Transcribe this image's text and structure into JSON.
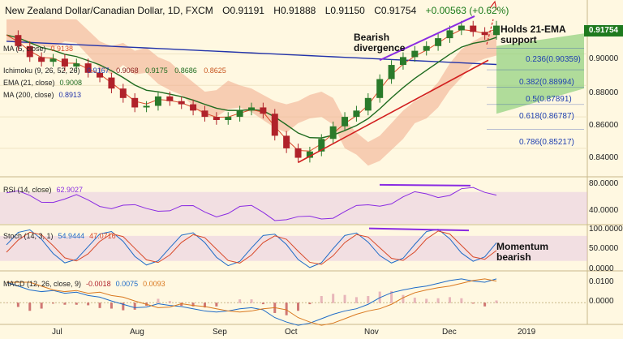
{
  "header": {
    "symbol": "New Zealand Dollar/Canadian Dollar, 1D, FXCM",
    "open": "O0.91191",
    "high": "H0.91888",
    "low": "L0.91150",
    "close": "C0.91754",
    "change": "+0.00563 (+0.62%)"
  },
  "last_price": "0.91754",
  "annotations": {
    "bearish_line1": "Bearish",
    "bearish_line2": "divergence",
    "ema_line1": "Holds 21-EMA",
    "ema_line2": "support",
    "momentum_line1": "Momentum",
    "momentum_line2": "bearish"
  },
  "indicators": {
    "ma5": {
      "label": "MA (5, close)",
      "value": "0.9138"
    },
    "ichimoku": {
      "label": "Ichimoku (9, 26, 52, 26)",
      "v1": "0.9167",
      "v2": "0.9068",
      "v3": "0.9175",
      "v4": "0.8686",
      "v5": "0.8625"
    },
    "ema21": {
      "label": "EMA (21, close)",
      "value": "0.9008"
    },
    "ma200": {
      "label": "MA (200, close)",
      "value": "0.8913"
    },
    "rsi": {
      "label": "RSI (14, close)",
      "value": "62.9027"
    },
    "stoch": {
      "label": "Stoch (14, 3, 1)",
      "k": "54.9444",
      "d": "47.0716"
    },
    "macd": {
      "label": "MACD (12, 26, close, 9)",
      "hist": "-0.0018",
      "macd": "0.0075",
      "signal": "0.0093"
    }
  },
  "axis": {
    "price_ticks": [
      "0.90000",
      "0.88000",
      "0.86000",
      "0.84000"
    ],
    "rsi_ticks": [
      "80.0000",
      "40.0000"
    ],
    "stoch_ticks": [
      "100.0000",
      "50.0000",
      "0.0000"
    ],
    "macd_ticks": [
      "0.0100",
      "0.0000"
    ],
    "months": [
      "Jul",
      "Aug",
      "Sep",
      "Oct",
      "Nov",
      "Dec",
      "2019"
    ]
  },
  "fib_levels": [
    {
      "label": "0.236(0.90359)",
      "value": 0.90359
    },
    {
      "label": "0.382(0.88994)",
      "value": 0.88994
    },
    {
      "label": "0.5(0.87891)",
      "value": 0.87891
    },
    {
      "label": "0.618(0.86787)",
      "value": 0.86787
    },
    {
      "label": "0.786(0.85217)",
      "value": 0.85217
    }
  ],
  "colors": {
    "background": "#fff8e1",
    "up": "#2a7a2a",
    "down": "#b0222a",
    "ma5": "#d94a2a",
    "ema21": "#1f6b1f",
    "ma200": "#2233aa",
    "cloud_bull": "#8fd07c",
    "cloud_bear": "#f0a98c",
    "fib": "#1f3fb0",
    "divergence": "#8a2be2",
    "trend": "#d21f1f",
    "price_tag": "#1e7a1e"
  },
  "chart_data": {
    "type": "candlestick",
    "title": "New Zealand Dollar/Canadian Dollar, 1D, FXCM",
    "xlabel": "",
    "ylabel": "",
    "ylim": [
      0.825,
      0.925
    ],
    "x": [
      "Jul",
      "Aug",
      "Sep",
      "Oct",
      "Nov",
      "Dec",
      "2019"
    ],
    "price_path": [
      0.912,
      0.905,
      0.898,
      0.895,
      0.897,
      0.892,
      0.894,
      0.888,
      0.885,
      0.878,
      0.872,
      0.866,
      0.867,
      0.873,
      0.87,
      0.868,
      0.864,
      0.86,
      0.858,
      0.86,
      0.864,
      0.866,
      0.862,
      0.848,
      0.84,
      0.834,
      0.838,
      0.846,
      0.854,
      0.86,
      0.864,
      0.872,
      0.884,
      0.893,
      0.898,
      0.902,
      0.905,
      0.91,
      0.915,
      0.918,
      0.914,
      0.912,
      0.918
    ],
    "rsi": {
      "value": 62.9027,
      "ylim": [
        30,
        85
      ],
      "levels": [
        70,
        30
      ]
    },
    "stoch": {
      "k": 54.9444,
      "d": 47.0716,
      "ylim": [
        0,
        105
      ],
      "levels": [
        80,
        20
      ]
    },
    "macd": {
      "hist": -0.0018,
      "macd": 0.0075,
      "signal": 0.0093,
      "ylim": [
        -0.008,
        0.012
      ]
    }
  }
}
